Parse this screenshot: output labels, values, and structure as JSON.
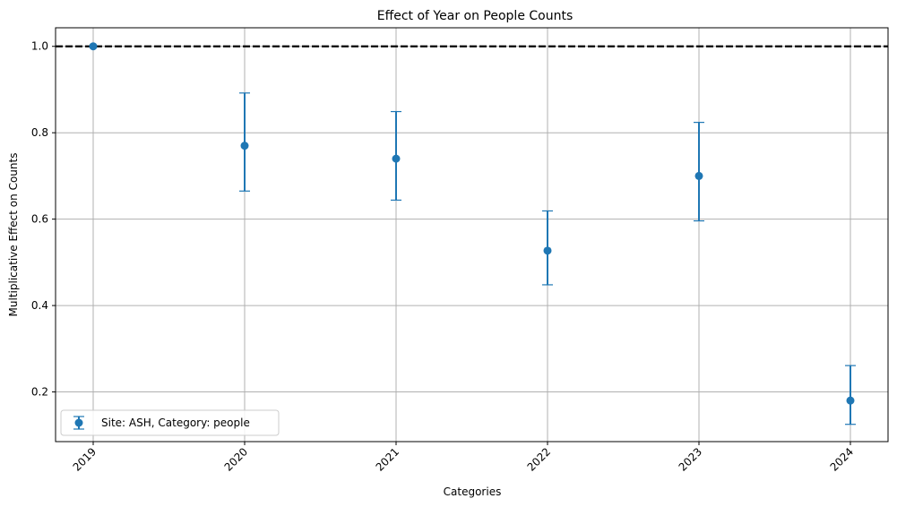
{
  "chart_data": {
    "type": "scatter",
    "title": "Effect of Year on People Counts",
    "xlabel": "Categories",
    "ylabel": "Multiplicative Effect on Counts",
    "categories": [
      "2019",
      "2020",
      "2021",
      "2022",
      "2023",
      "2024"
    ],
    "series": [
      {
        "name": "Site: ASH, Category: people",
        "values": [
          1.0,
          0.77,
          0.74,
          0.527,
          0.7,
          0.18
        ],
        "lower": [
          1.0,
          0.665,
          0.644,
          0.448,
          0.596,
          0.125
        ],
        "upper": [
          1.0,
          0.892,
          0.849,
          0.619,
          0.824,
          0.261
        ],
        "color": "#1f77b4"
      }
    ],
    "ylim": [
      0.085,
      1.043
    ],
    "yticks": [
      0.2,
      0.4,
      0.6,
      0.8,
      1.0
    ],
    "ytick_labels": [
      "0.2",
      "0.4",
      "0.6",
      "0.8",
      "1.0"
    ],
    "reference_line": {
      "y": 1.0,
      "style": "dashed",
      "color": "#000000"
    },
    "grid": true,
    "grid_color": "#b0b0b0",
    "legend_position": "lower-left",
    "xtick_rotation": 45
  }
}
